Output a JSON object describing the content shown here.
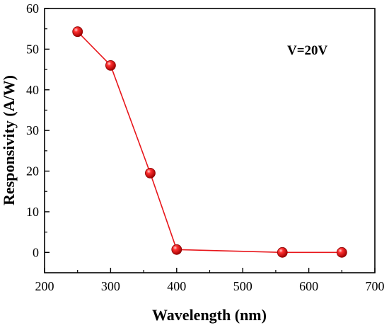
{
  "chart_data": {
    "type": "line",
    "title": "",
    "xlabel": "Wavelength (nm)",
    "ylabel": "Responsivity (A/W)",
    "xlim": [
      200,
      700
    ],
    "ylim": [
      -5,
      60
    ],
    "xticks": [
      200,
      300,
      400,
      500,
      600,
      700
    ],
    "yticks": [
      0,
      10,
      20,
      30,
      40,
      50,
      60
    ],
    "xtick_labels": [
      "200",
      "300",
      "400",
      "500",
      "600",
      "700"
    ],
    "ytick_labels": [
      "0",
      "10",
      "20",
      "30",
      "40",
      "50",
      "60"
    ],
    "annotation": "V=20V",
    "grid": false,
    "legend": "none",
    "series": [
      {
        "color": "#e8161b",
        "x": [
          250,
          300,
          360,
          400,
          560,
          650
        ],
        "y": [
          54.3,
          46.0,
          19.5,
          0.7,
          0.0,
          0.0
        ]
      }
    ]
  }
}
